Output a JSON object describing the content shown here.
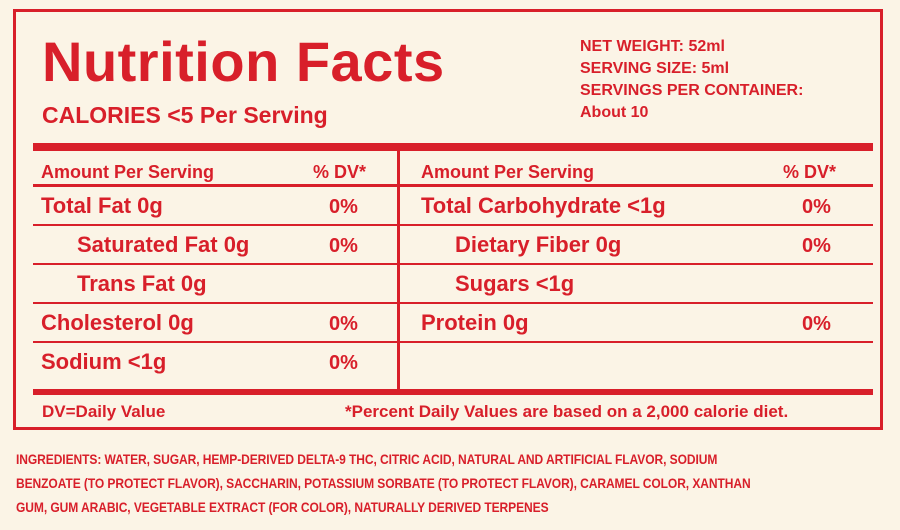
{
  "title": "Nutrition Facts",
  "calories": "CALORIES <5 Per Serving",
  "meta": {
    "net_weight": "NET WEIGHT: 52ml",
    "serving_size": "SERVING SIZE: 5ml",
    "servings_per_container": "SERVINGS PER CONTAINER:",
    "servings_value": "About 10"
  },
  "table": {
    "left": {
      "header_amount": "Amount Per Serving",
      "header_dv": "% DV*",
      "rows": [
        {
          "name": "Total Fat 0g",
          "dv": "0%"
        },
        {
          "name": "Saturated Fat 0g",
          "dv": "0%"
        },
        {
          "name": "Trans Fat 0g",
          "dv": ""
        },
        {
          "name": "Cholesterol 0g",
          "dv": "0%"
        },
        {
          "name": "Sodium <1g",
          "dv": "0%"
        }
      ]
    },
    "right": {
      "header_amount": "Amount Per Serving",
      "header_dv": "% DV*",
      "rows": [
        {
          "name": "Total Carbohydrate <1g",
          "dv": "0%"
        },
        {
          "name": "Dietary Fiber 0g",
          "dv": "0%"
        },
        {
          "name": "Sugars <1g",
          "dv": ""
        },
        {
          "name": "Protein 0g",
          "dv": "0%"
        },
        {
          "name": "",
          "dv": ""
        }
      ]
    }
  },
  "footnotes": {
    "dv": "DV=Daily Value",
    "percent": "*Percent Daily Values are based on a 2,000 calorie diet."
  },
  "ingredients": {
    "line1": "INGREDIENTS: WATER, SUGAR, HEMP-DERIVED DELTA-9 THC, CITRIC ACID, NATURAL AND ARTIFICIAL FLAVOR, SODIUM",
    "line2": "BENZOATE (TO PROTECT FLAVOR), SACCHARIN, POTASSIUM SORBATE (TO PROTECT FLAVOR), CARAMEL COLOR, XANTHAN",
    "line3": "GUM, GUM ARABIC, VEGETABLE EXTRACT (FOR COLOR), NATURALLY DERIVED TERPENES"
  },
  "colors": {
    "ink": "#d81f2a",
    "paper": "#fbf4e6"
  }
}
